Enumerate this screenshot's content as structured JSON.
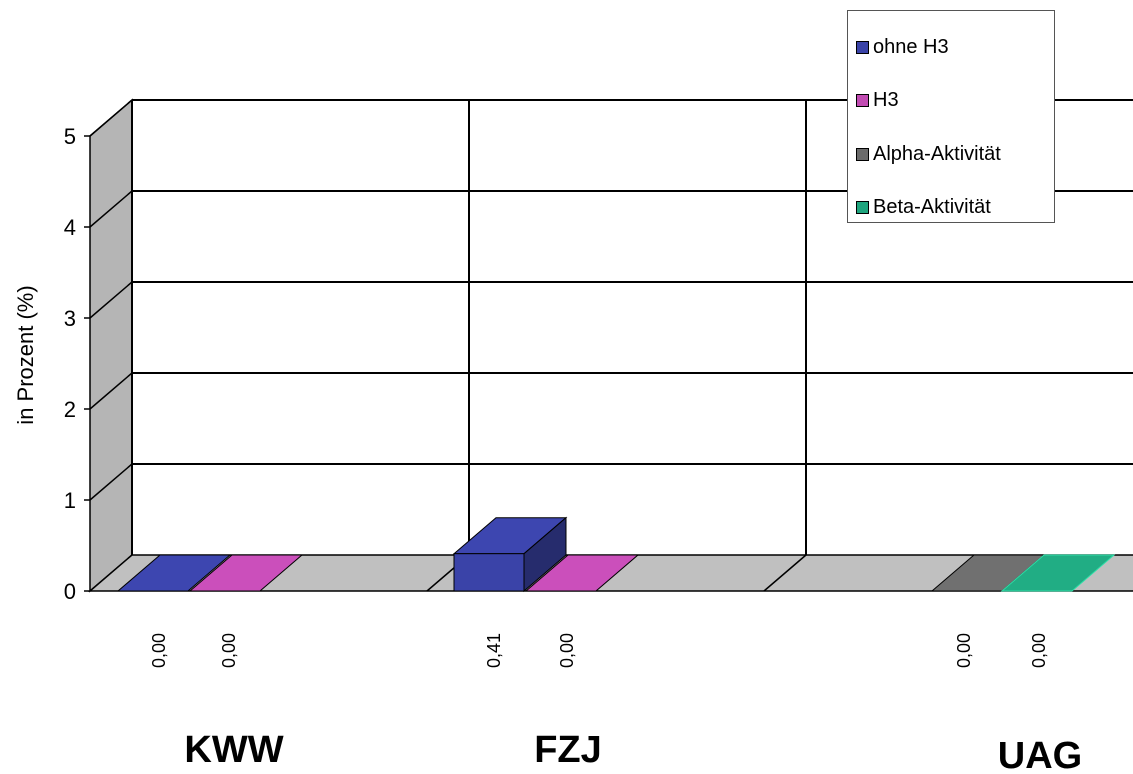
{
  "colors": {
    "ohne_h3": "#3A43A8",
    "h3": "#C14BB2",
    "alpha": "#6B6B6B",
    "beta": "#1FA57E",
    "floor": "#C0C0C0",
    "wall": "#B5B5B5"
  },
  "chart_data": {
    "type": "bar",
    "title": "",
    "xlabel": "",
    "ylabel": "in Prozent (%)",
    "ylim": [
      0,
      5
    ],
    "yticks": [
      "0",
      "1",
      "2",
      "3",
      "4",
      "5"
    ],
    "categories": [
      "KWW",
      "FZJ",
      "UAG"
    ],
    "series": [
      {
        "name": "ohne H3",
        "values": [
          0.0,
          0.41,
          null
        ],
        "labels": [
          "0,00",
          "0,41",
          ""
        ]
      },
      {
        "name": "H3",
        "values": [
          0.0,
          0.0,
          null
        ],
        "labels": [
          "0,00",
          "0,00",
          ""
        ]
      },
      {
        "name": "Alpha-Aktivität",
        "values": [
          null,
          null,
          0.0
        ],
        "labels": [
          "",
          "",
          "0,00"
        ]
      },
      {
        "name": "Beta-Aktivität",
        "values": [
          null,
          null,
          0.0
        ],
        "labels": [
          "",
          "",
          "0,00"
        ]
      }
    ],
    "legend_position": "top-right",
    "grid": true
  },
  "legend": {
    "items": [
      "ohne H3",
      "H3",
      "Alpha-Aktivität",
      "Beta-Aktivität"
    ]
  }
}
